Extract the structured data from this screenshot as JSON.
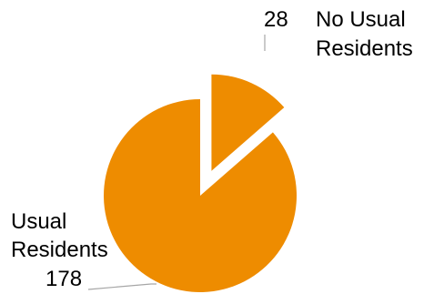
{
  "chart_data": {
    "type": "pie",
    "title": "",
    "slices": [
      {
        "label": "No Usual Residents",
        "value": 28,
        "label_lines": [
          "No Usual",
          "Residents"
        ],
        "color": "#EE8C00",
        "exploded": true
      },
      {
        "label": "Usual Residents",
        "value": 178,
        "label_lines": [
          "Usual",
          "Residents"
        ],
        "color": "#EE8C00",
        "exploded": false
      }
    ],
    "leader_line_color": "#A6A6A6",
    "legend": "none"
  }
}
